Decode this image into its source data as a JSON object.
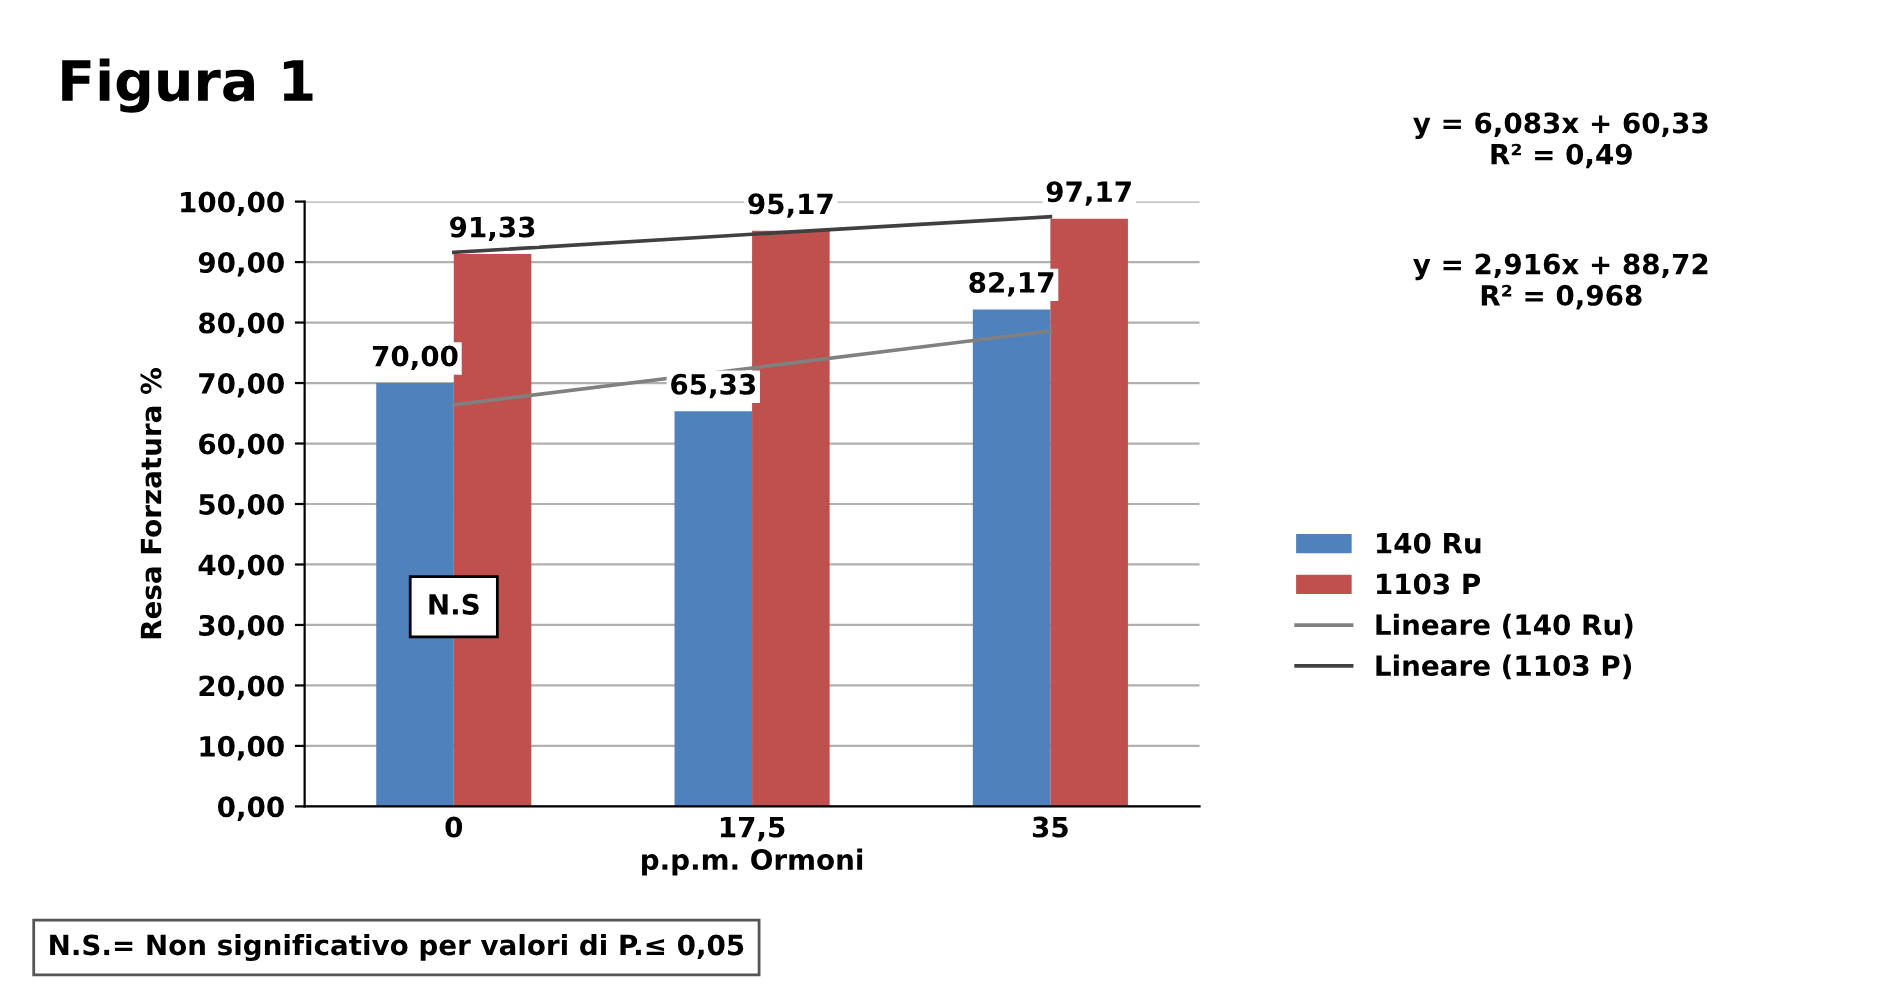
{
  "chart_data": {
    "type": "bar",
    "title": "Figura 1",
    "xlabel": "p.p.m. Ormoni",
    "ylabel": "Resa Forzatura %",
    "categories": [
      "0",
      "17,5",
      "35"
    ],
    "series": [
      {
        "name": "140 Ru",
        "color": "#4f81bd",
        "values": [
          70.0,
          65.33,
          82.17
        ],
        "value_labels": [
          "70,00",
          "65,33",
          "82,17"
        ]
      },
      {
        "name": "1103 P",
        "color": "#c0504d",
        "values": [
          91.33,
          95.17,
          97.17
        ],
        "value_labels": [
          "91,33",
          "95,17",
          "97,17"
        ]
      },
      {
        "name": "Lineare (140 Ru)",
        "type": "line",
        "color": "#808080",
        "values": [
          66.4,
          72.5,
          78.6
        ]
      },
      {
        "name": "Lineare (1103 P)",
        "type": "line",
        "color": "#404040",
        "values": [
          91.6,
          94.6,
          97.5
        ]
      }
    ],
    "ylim": [
      0,
      100
    ],
    "yticks": [
      {
        "value": 0,
        "label": "0,00"
      },
      {
        "value": 10,
        "label": "10,00"
      },
      {
        "value": 20,
        "label": "20,00"
      },
      {
        "value": 30,
        "label": "30,00"
      },
      {
        "value": 40,
        "label": "40,00"
      },
      {
        "value": 50,
        "label": "50,00"
      },
      {
        "value": 60,
        "label": "60,00"
      },
      {
        "value": 70,
        "label": "70,00"
      },
      {
        "value": 80,
        "label": "80,00"
      },
      {
        "value": 90,
        "label": "90,00"
      },
      {
        "value": 100,
        "label": "100,00"
      }
    ],
    "grid": "y",
    "legend": "right",
    "marker": "none",
    "line_style": "solid",
    "annotations": [
      "y = 6,083x + 60,33\nR² = 0,49",
      "y = 2,916x + 88,72\nR² = 0,968",
      {
        "text": "N.S",
        "x": "0",
        "y": 33
      },
      "N.S.= Non significativo per valori di P.≤ 0,05"
    ]
  }
}
